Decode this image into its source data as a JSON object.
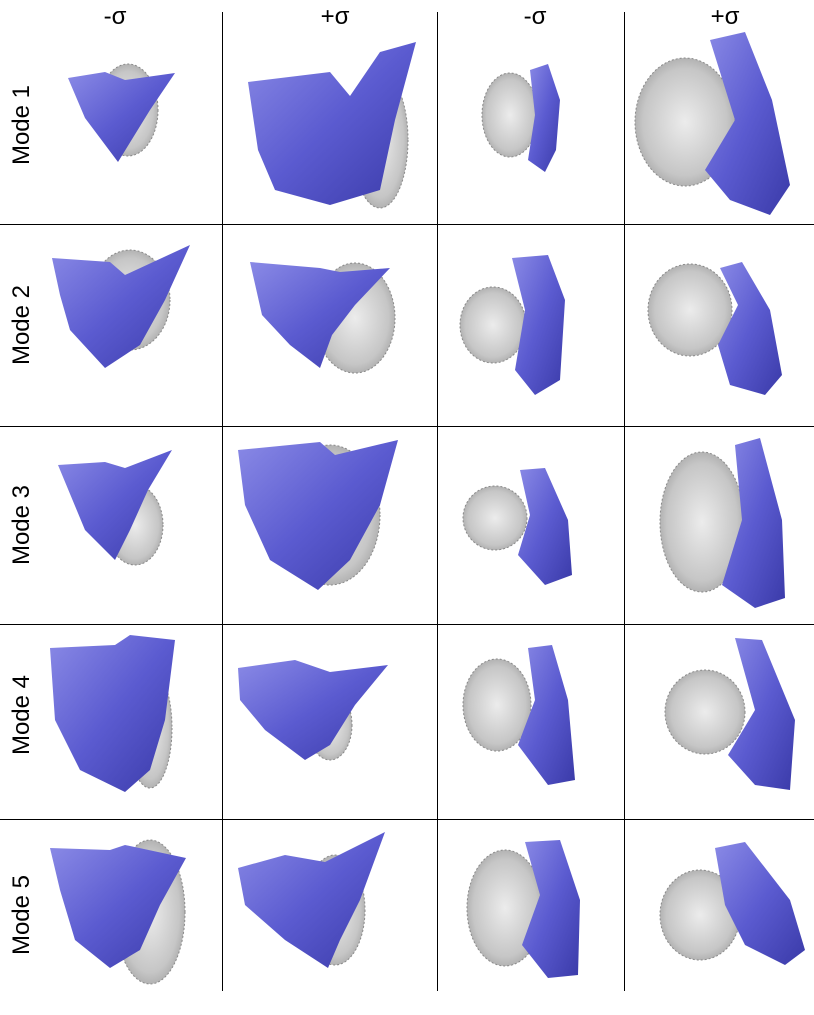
{
  "column_headers": [
    "-σ",
    "+σ",
    "-σ",
    "+σ"
  ],
  "row_labels": [
    "Mode 1",
    "Mode 2",
    "Mode 3",
    "Mode 4",
    "Mode 5"
  ],
  "colors": {
    "surface_blue": "#5b5bd0",
    "surface_blue_dark": "#3a3aa8",
    "surface_blue_light": "#8a8ae6",
    "wireframe_gray": "#b8b8b8",
    "wireframe_dark": "#8a8a8a",
    "grid_line": "#000000"
  }
}
